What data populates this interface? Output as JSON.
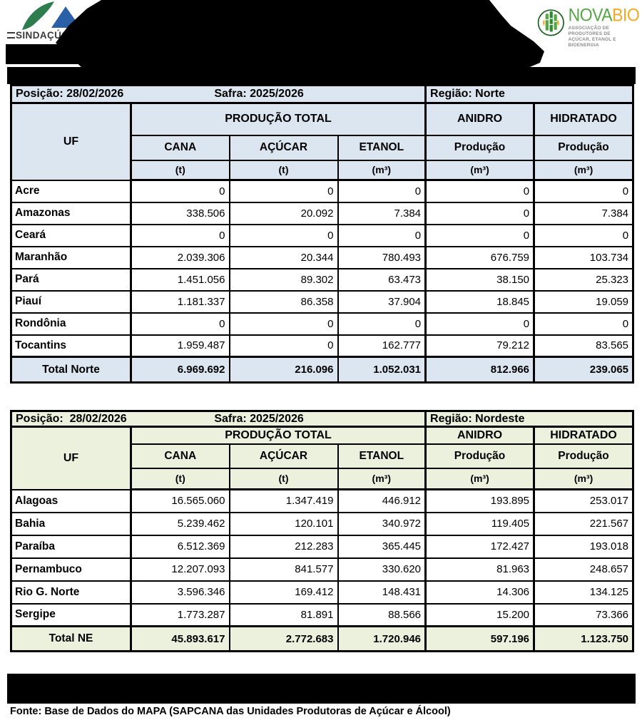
{
  "colors": {
    "accent_norte": "#dce6f1",
    "accent_nordeste": "#ebf1dd",
    "sindacucar_green": "#2e7d4f",
    "sindacucar_blue": "#2b5fa8",
    "novabio_green": "#56a546",
    "novabio_dark_green": "#1b5e20",
    "novabio_orange": "#f7a823",
    "redaction_black": "#000000"
  },
  "logos": {
    "sindacucar": {
      "name": "SINDAÇÚCAR",
      "registered": "®"
    },
    "novabio": {
      "nova": "NOVA",
      "bio": "BIO",
      "subtitle_line1": "ASSOCIAÇÃO DE PRODUTORES DE",
      "subtitle_line2": "AÇÚCAR, ETANOL E BIOENERGIA"
    }
  },
  "tables": [
    {
      "accent": "#dce6f1",
      "posicao_text": "Posição: 28/02/2026",
      "safra_text": "Safra: 2025/2026",
      "regiao_text": "Região: Norte",
      "headers": {
        "uf": "UF",
        "producao_total": "PRODUÇÃO TOTAL",
        "anidro": "ANIDRO",
        "hidratado": "HIDRATADO",
        "cana": "CANA",
        "acucar": "AÇÚCAR",
        "etanol": "ETANOL",
        "producao": "Produção",
        "unit_t": "(t)",
        "unit_m3": "(m³)"
      },
      "rows": [
        {
          "uf": "Acre",
          "values": [
            "0",
            "0",
            "0",
            "0",
            "0"
          ]
        },
        {
          "uf": "Amazonas",
          "values": [
            "338.506",
            "20.092",
            "7.384",
            "0",
            "7.384"
          ]
        },
        {
          "uf": "Ceará",
          "values": [
            "0",
            "0",
            "0",
            "0",
            "0"
          ]
        },
        {
          "uf": "Maranhão",
          "values": [
            "2.039.306",
            "20.344",
            "780.493",
            "676.759",
            "103.734"
          ]
        },
        {
          "uf": "Pará",
          "values": [
            "1.451.056",
            "89.302",
            "63.473",
            "38.150",
            "25.323"
          ]
        },
        {
          "uf": "Piauí",
          "values": [
            "1.181.337",
            "86.358",
            "37.904",
            "18.845",
            "19.059"
          ]
        },
        {
          "uf": "Rondônia",
          "values": [
            "0",
            "0",
            "0",
            "0",
            "0"
          ]
        },
        {
          "uf": "Tocantins",
          "values": [
            "1.959.487",
            "0",
            "162.777",
            "79.212",
            "83.565"
          ]
        }
      ],
      "total": {
        "label": "Total Norte",
        "values": [
          "6.969.692",
          "216.096",
          "1.052.031",
          "812.966",
          "239.065"
        ]
      }
    },
    {
      "accent": "#ebf1dd",
      "posicao_text": "Posição:  28/02/2026",
      "safra_text": "Safra: 2025/2026",
      "regiao_text": "Região: Nordeste",
      "headers": {
        "uf": "UF",
        "producao_total": "PRODUÇÃO TOTAL",
        "anidro": "ANIDRO",
        "hidratado": "HIDRATADO",
        "cana": "CANA",
        "acucar": "AÇÚCAR",
        "etanol": "ETANOL",
        "producao": "Produção",
        "unit_t": "(t)",
        "unit_m3": "(m³)"
      },
      "rows": [
        {
          "uf": "Alagoas",
          "values": [
            "16.565.060",
            "1.347.419",
            "446.912",
            "193.895",
            "253.017"
          ]
        },
        {
          "uf": "Bahia",
          "values": [
            "5.239.462",
            "120.101",
            "340.972",
            "119.405",
            "221.567"
          ]
        },
        {
          "uf": "Paraíba",
          "values": [
            "6.512.369",
            "212.283",
            "365.445",
            "172.427",
            "193.018"
          ]
        },
        {
          "uf": "Pernambuco",
          "values": [
            "12.207.093",
            "841.577",
            "330.620",
            "81.963",
            "248.657"
          ]
        },
        {
          "uf": "Rio G. Norte",
          "values": [
            "3.596.346",
            "169.412",
            "148.431",
            "14.306",
            "134.125"
          ]
        },
        {
          "uf": "Sergipe",
          "values": [
            "1.773.287",
            "81.891",
            "88.566",
            "15.200",
            "73.366"
          ]
        }
      ],
      "total": {
        "label": "Total NE",
        "values": [
          "45.893.617",
          "2.772.683",
          "1.720.946",
          "597.196",
          "1.123.750"
        ]
      }
    }
  ],
  "footer": {
    "fonte": "Fonte: Base de Dados do MAPA (SAPCANA das Unidades Produtoras de Açúcar e Álcool)"
  }
}
